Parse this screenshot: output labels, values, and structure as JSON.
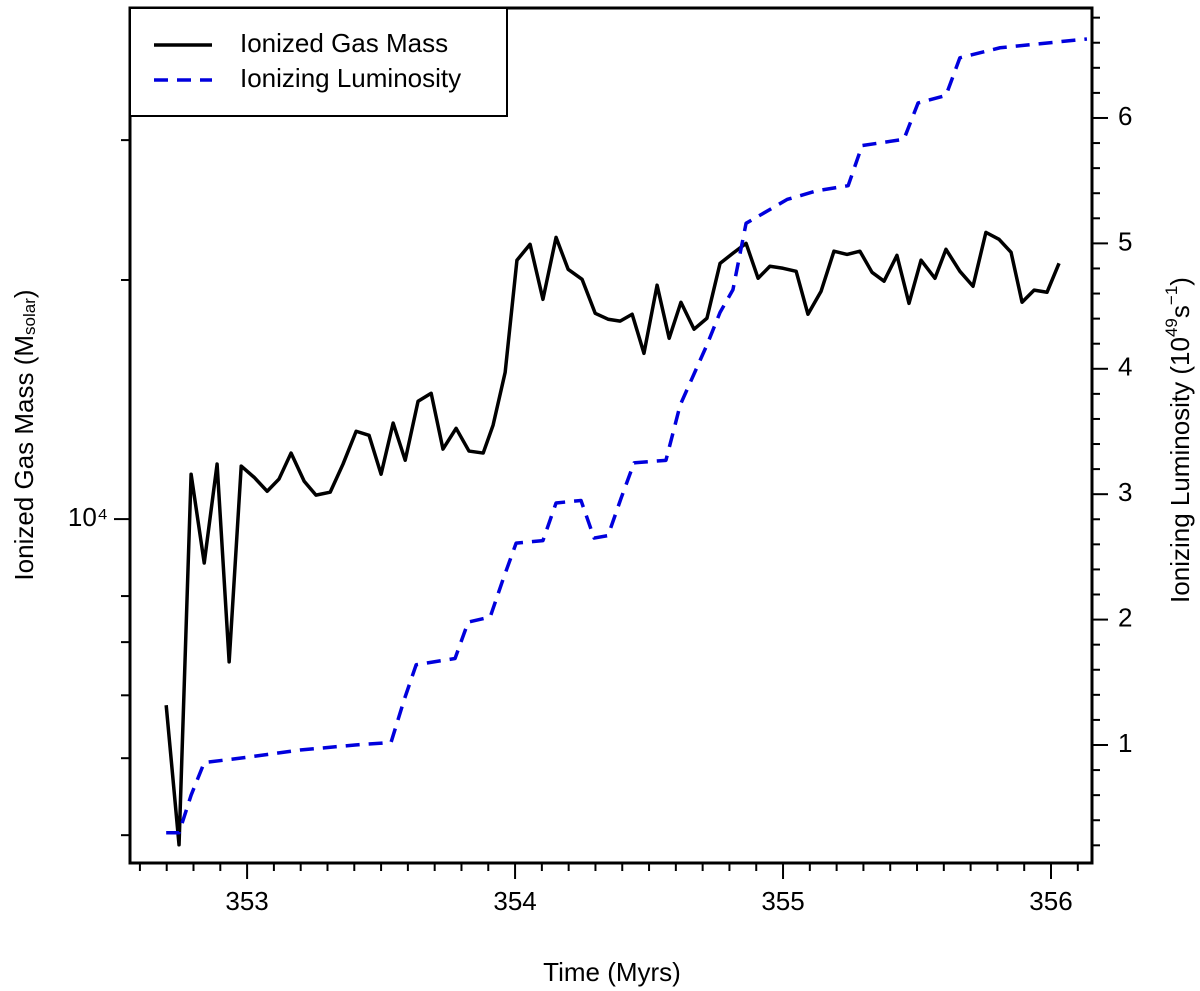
{
  "chart_data": {
    "type": "line",
    "x_label": "Time (Myrs)",
    "y_label": {
      "main": "Ionized Gas Mass (M",
      "sub": "solar",
      "end": ")"
    },
    "y2_label": {
      "main": "Ionizing Luminosity (10",
      "sup": "49",
      "mid": "s",
      "sup2": "−1",
      "end": ")"
    },
    "xlim": [
      352.563,
      356.153
    ],
    "xticks": [
      353,
      354,
      355,
      356
    ],
    "xminorticks": [
      352.6,
      352.7,
      352.8,
      352.9,
      353.1,
      353.2,
      353.3,
      353.4,
      353.5,
      353.6,
      353.7,
      353.8,
      353.9,
      354.1,
      354.2,
      354.3,
      354.4,
      354.5,
      354.6,
      354.7,
      354.8,
      354.9,
      355.1,
      355.2,
      355.3,
      355.4,
      355.5,
      355.6,
      355.7,
      355.8,
      355.9,
      356.1
    ],
    "ylim": [
      3690,
      44000
    ],
    "ylog": true,
    "yticks": [
      {
        "value": 10000,
        "label": "10⁴"
      }
    ],
    "yminorticks": [
      4000,
      5000,
      6000,
      7000,
      8000,
      20000,
      30000
    ],
    "y2lim": [
      0.059,
      6.877
    ],
    "y2ticks": [
      1,
      2,
      3,
      4,
      5,
      6
    ],
    "y2minorticks": [
      0.2,
      0.4,
      0.6,
      0.8,
      1.2,
      1.4,
      1.6,
      1.8,
      2.2,
      2.4,
      2.6,
      2.8,
      3.2,
      3.4,
      3.6,
      3.8,
      4.2,
      4.4,
      4.6,
      4.8,
      5.2,
      5.4,
      5.6,
      5.8,
      6.2,
      6.4,
      6.6,
      6.8
    ],
    "legend": "top-left",
    "series": [
      {
        "name": "Ionized Gas Mass",
        "color": "#000000",
        "dash": false,
        "x": [
          352.698,
          352.746,
          352.791,
          352.84,
          352.888,
          352.933,
          352.978,
          353.026,
          353.075,
          353.119,
          353.164,
          353.213,
          353.257,
          353.31,
          353.358,
          353.407,
          353.455,
          353.5,
          353.545,
          353.59,
          353.638,
          353.687,
          353.731,
          353.78,
          353.828,
          353.881,
          353.918,
          353.963,
          354.007,
          354.056,
          354.104,
          354.153,
          354.198,
          354.25,
          354.299,
          354.347,
          354.392,
          354.437,
          354.481,
          354.53,
          354.575,
          354.619,
          354.668,
          354.716,
          354.765,
          354.813,
          354.862,
          354.907,
          354.951,
          355.0,
          355.049,
          355.093,
          355.142,
          355.19,
          355.239,
          355.287,
          355.332,
          355.377,
          355.425,
          355.47,
          355.515,
          355.567,
          355.608,
          355.66,
          355.709,
          355.757,
          355.806,
          355.851,
          355.892,
          355.937,
          355.985,
          356.03
        ],
        "values": [
          5830,
          3890,
          11390,
          8805,
          11730,
          6610,
          11660,
          11290,
          10840,
          11230,
          12110,
          11160,
          10720,
          10810,
          11730,
          12900,
          12750,
          11390,
          13210,
          11860,
          14070,
          14400,
          12250,
          13010,
          12180,
          12110,
          13130,
          15300,
          21180,
          22180,
          18910,
          22630,
          20630,
          20040,
          18160,
          17850,
          17750,
          18110,
          16170,
          19700,
          16890,
          18750,
          17340,
          17900,
          20990,
          21610,
          22240,
          20100,
          20810,
          20690,
          20510,
          18110,
          19360,
          21740,
          21540,
          21740,
          20450,
          19930,
          21480,
          18690,
          21180,
          20100,
          21860,
          20510,
          19640,
          22960,
          22500,
          21670,
          18750,
          19420,
          19300,
          20990
        ]
      },
      {
        "name": "Ionizing Luminosity",
        "color": "#0000dd",
        "dash": true,
        "axis": "y2",
        "x": [
          352.698,
          352.746,
          352.791,
          352.84,
          352.993,
          353.198,
          353.403,
          353.537,
          353.586,
          353.631,
          353.776,
          353.825,
          353.907,
          353.955,
          354.004,
          354.104,
          354.153,
          354.246,
          354.295,
          354.347,
          354.396,
          354.444,
          354.563,
          354.616,
          354.716,
          354.765,
          354.813,
          354.862,
          355.015,
          355.127,
          355.243,
          355.295,
          355.451,
          355.504,
          355.608,
          355.66,
          355.81,
          356.134
        ],
        "values": [
          0.3,
          0.3,
          0.6,
          0.86,
          0.9,
          0.96,
          1.0,
          1.02,
          1.36,
          1.64,
          1.69,
          1.98,
          2.02,
          2.32,
          2.61,
          2.63,
          2.93,
          2.95,
          2.65,
          2.67,
          2.97,
          3.25,
          3.27,
          3.71,
          4.19,
          4.45,
          4.63,
          5.16,
          5.35,
          5.42,
          5.46,
          5.78,
          5.83,
          6.12,
          6.18,
          6.48,
          6.56,
          6.63
        ]
      }
    ]
  }
}
